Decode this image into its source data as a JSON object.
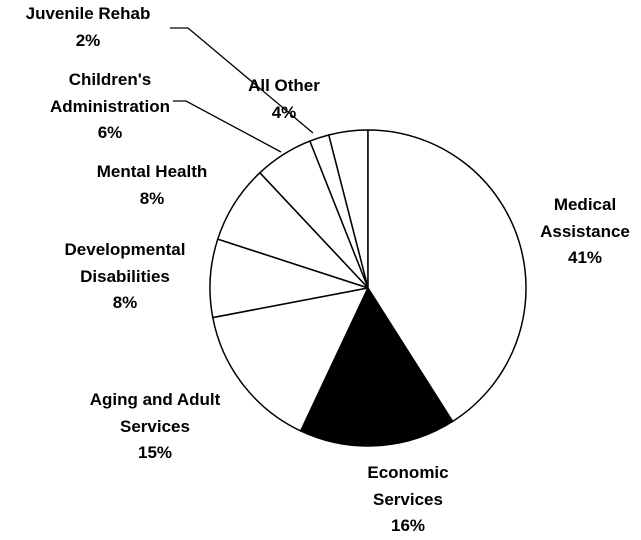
{
  "chart_data": {
    "type": "pie",
    "categories": [
      "Medical Assistance",
      "Economic Services",
      "Aging and Adult Services",
      "Developmental Disabilities",
      "Mental Health",
      "Children's Administration",
      "Juvenile Rehab",
      "All Other"
    ],
    "values": [
      41,
      16,
      15,
      8,
      8,
      6,
      2,
      4
    ],
    "value_labels": [
      "41%",
      "16%",
      "15%",
      "8%",
      "8%",
      "6%",
      "2%",
      "4%"
    ],
    "colors": [
      "#ffffff",
      "#000000",
      "#ffffff",
      "#ffffff",
      "#ffffff",
      "#ffffff",
      "#ffffff",
      "#ffffff"
    ]
  }
}
